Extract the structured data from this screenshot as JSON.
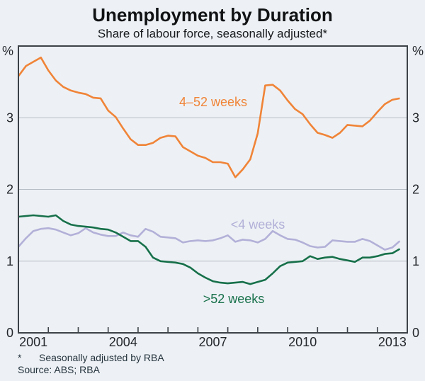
{
  "title": "Unemployment by Duration",
  "subtitle": "Share of labour force, seasonally adjusted*",
  "footnote": {
    "marker": "*",
    "text": "Seasonally adjusted by RBA"
  },
  "source": "Source: ABS; RBA",
  "axis": {
    "unit_left": "%",
    "unit_right": "%",
    "y_ticks": [
      0,
      1,
      2,
      3
    ],
    "x_tick_labels": [
      "2001",
      "2004",
      "2007",
      "2010",
      "2013"
    ]
  },
  "colors": {
    "background": "#edf1f5",
    "frame": "#3c4247",
    "gridline": "#b7bec5",
    "tick_text": "#24282c",
    "orange": "#f08438",
    "lavender": "#b3b0d8",
    "green": "#17704a"
  },
  "chart_data": {
    "type": "line",
    "title": "Unemployment by Duration",
    "subtitle": "Share of labour force, seasonally adjusted*",
    "ylabel": "%",
    "ylim": [
      0,
      4
    ],
    "gridlines": [
      1,
      2,
      3
    ],
    "grid": true,
    "legend_position": "inline-labels",
    "x_start": "2001Q1",
    "x_end": "2013Q4",
    "x_step_years": 0.25,
    "x_axis_range_years": [
      2001.0,
      2014.0
    ],
    "series": [
      {
        "id": "weeks-4-52",
        "name": "4–52 weeks",
        "color": "#f08438",
        "values": [
          3.58,
          3.72,
          3.78,
          3.84,
          3.66,
          3.52,
          3.43,
          3.38,
          3.35,
          3.33,
          3.28,
          3.27,
          3.1,
          3.01,
          2.85,
          2.7,
          2.62,
          2.62,
          2.65,
          2.72,
          2.75,
          2.74,
          2.59,
          2.53,
          2.47,
          2.44,
          2.38,
          2.38,
          2.36,
          2.17,
          2.28,
          2.42,
          2.78,
          3.45,
          3.46,
          3.38,
          3.24,
          3.12,
          3.05,
          2.91,
          2.79,
          2.76,
          2.72,
          2.79,
          2.9,
          2.89,
          2.88,
          2.96,
          3.08,
          3.19,
          3.25,
          3.27
        ]
      },
      {
        "id": "weeks-lt4",
        "name": "<4 weeks",
        "color": "#b3b0d8",
        "values": [
          1.2,
          1.32,
          1.42,
          1.45,
          1.46,
          1.44,
          1.4,
          1.36,
          1.39,
          1.46,
          1.4,
          1.37,
          1.35,
          1.35,
          1.4,
          1.36,
          1.34,
          1.45,
          1.41,
          1.34,
          1.33,
          1.32,
          1.26,
          1.28,
          1.29,
          1.28,
          1.29,
          1.32,
          1.36,
          1.27,
          1.3,
          1.29,
          1.26,
          1.31,
          1.42,
          1.36,
          1.31,
          1.3,
          1.26,
          1.21,
          1.19,
          1.2,
          1.29,
          1.28,
          1.27,
          1.27,
          1.31,
          1.28,
          1.22,
          1.16,
          1.19,
          1.28
        ]
      },
      {
        "id": "weeks-gt52",
        "name": ">52 weeks",
        "color": "#17704a",
        "values": [
          1.62,
          1.63,
          1.64,
          1.63,
          1.62,
          1.64,
          1.56,
          1.51,
          1.49,
          1.48,
          1.47,
          1.45,
          1.44,
          1.4,
          1.34,
          1.28,
          1.28,
          1.2,
          1.05,
          1.0,
          0.99,
          0.98,
          0.96,
          0.91,
          0.83,
          0.77,
          0.72,
          0.7,
          0.69,
          0.7,
          0.71,
          0.68,
          0.71,
          0.74,
          0.83,
          0.93,
          0.98,
          0.99,
          1.0,
          1.07,
          1.03,
          1.05,
          1.06,
          1.03,
          1.01,
          0.99,
          1.05,
          1.05,
          1.07,
          1.1,
          1.11,
          1.17
        ]
      }
    ]
  }
}
